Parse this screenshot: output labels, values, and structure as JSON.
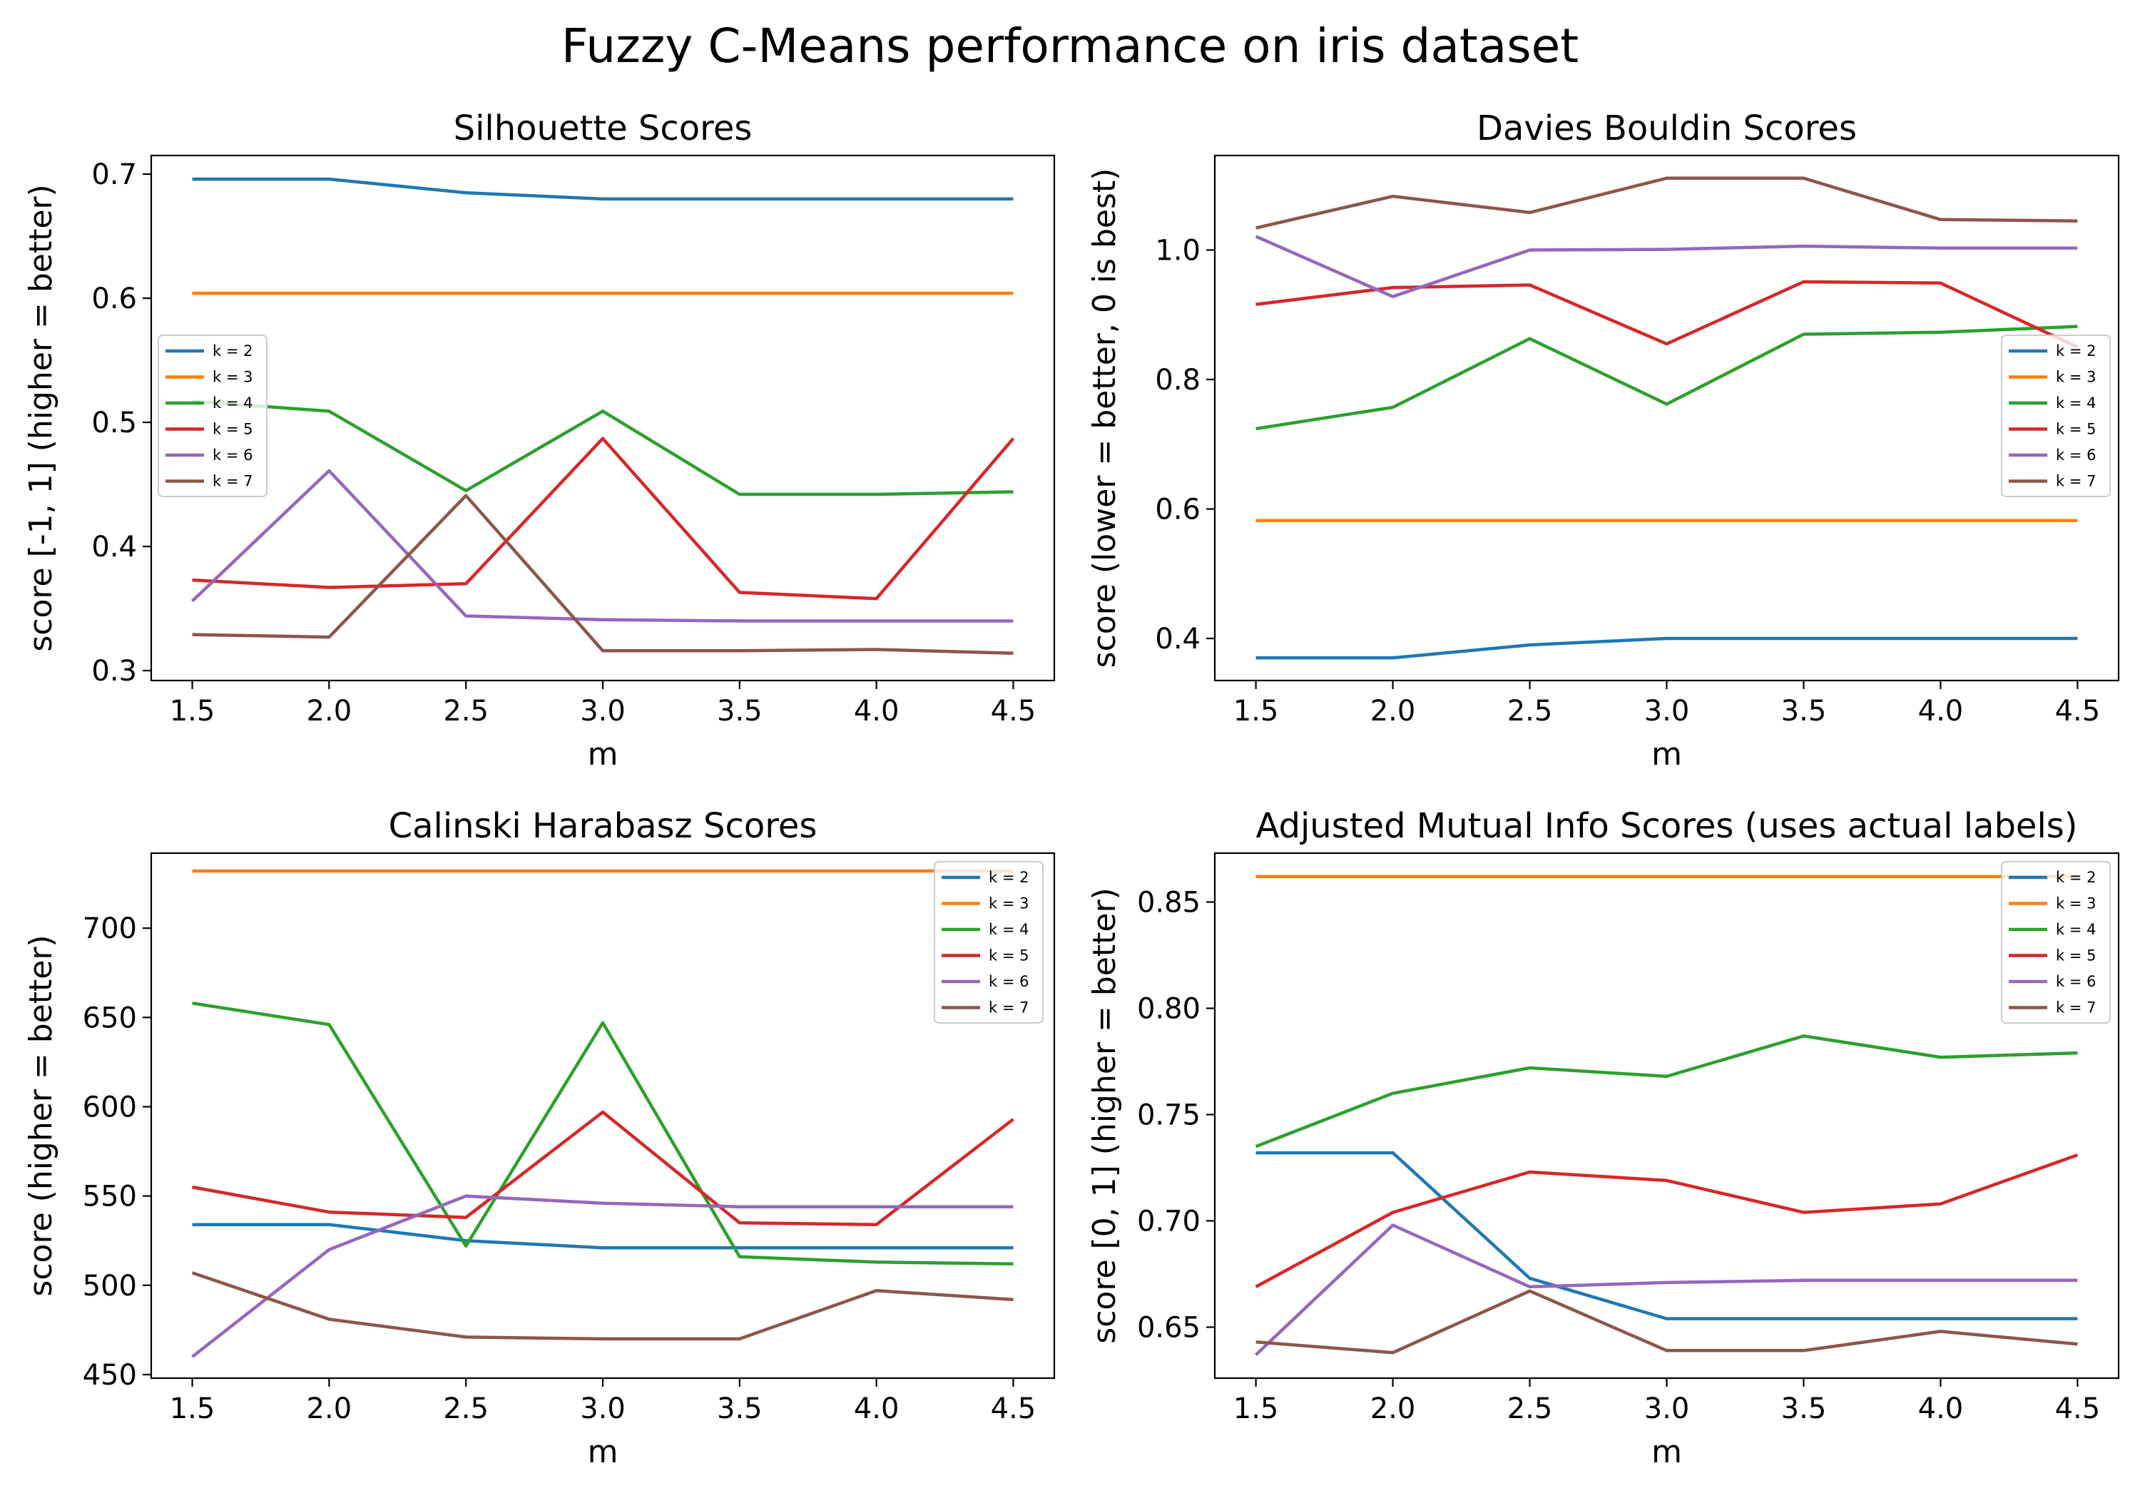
{
  "figure_title": "Fuzzy C-Means performance on iris dataset",
  "chart_data": [
    {
      "type": "line",
      "title": "Silhouette Scores",
      "xlabel": "m",
      "ylabel": "score [-1, 1] (higher = better)",
      "x": [
        1.5,
        2.0,
        2.5,
        3.0,
        3.5,
        4.0,
        4.5
      ],
      "xticks": [
        "1.5",
        "2.0",
        "2.5",
        "3.0",
        "3.5",
        "4.0",
        "4.5"
      ],
      "yticks": [
        "0.3",
        "0.4",
        "0.5",
        "0.6",
        "0.7"
      ],
      "legend_position": "center-left",
      "series": [
        {
          "name": "k = 2",
          "color": "#1f77b4",
          "values": [
            0.696,
            0.696,
            0.685,
            0.68,
            0.68,
            0.68,
            0.68
          ]
        },
        {
          "name": "k = 3",
          "color": "#ff7f0e",
          "values": [
            0.604,
            0.604,
            0.604,
            0.604,
            0.604,
            0.604,
            0.604
          ]
        },
        {
          "name": "k = 4",
          "color": "#2ca02c",
          "values": [
            0.517,
            0.509,
            0.445,
            0.509,
            0.442,
            0.442,
            0.444
          ]
        },
        {
          "name": "k = 5",
          "color": "#d62728",
          "values": [
            0.373,
            0.367,
            0.37,
            0.487,
            0.363,
            0.358,
            0.487
          ]
        },
        {
          "name": "k = 6",
          "color": "#9467bd",
          "values": [
            0.356,
            0.461,
            0.344,
            0.341,
            0.34,
            0.34,
            0.34
          ]
        },
        {
          "name": "k = 7",
          "color": "#8c564b",
          "values": [
            0.329,
            0.327,
            0.441,
            0.316,
            0.316,
            0.317,
            0.314
          ]
        }
      ]
    },
    {
      "type": "line",
      "title": "Davies Bouldin Scores",
      "xlabel": "m",
      "ylabel": "score (lower = better, 0 is best)",
      "x": [
        1.5,
        2.0,
        2.5,
        3.0,
        3.5,
        4.0,
        4.5
      ],
      "xticks": [
        "1.5",
        "2.0",
        "2.5",
        "3.0",
        "3.5",
        "4.0",
        "4.5"
      ],
      "yticks": [
        "0.4",
        "0.6",
        "0.8",
        "1.0"
      ],
      "legend_position": "center-right",
      "series": [
        {
          "name": "k = 2",
          "color": "#1f77b4",
          "values": [
            0.37,
            0.37,
            0.39,
            0.4,
            0.4,
            0.4,
            0.4
          ]
        },
        {
          "name": "k = 3",
          "color": "#ff7f0e",
          "values": [
            0.582,
            0.582,
            0.582,
            0.582,
            0.582,
            0.582,
            0.582
          ]
        },
        {
          "name": "k = 4",
          "color": "#2ca02c",
          "values": [
            0.724,
            0.757,
            0.863,
            0.762,
            0.87,
            0.873,
            0.882
          ]
        },
        {
          "name": "k = 5",
          "color": "#d62728",
          "values": [
            0.916,
            0.942,
            0.946,
            0.855,
            0.951,
            0.949,
            0.85
          ]
        },
        {
          "name": "k = 6",
          "color": "#9467bd",
          "values": [
            1.021,
            0.928,
            1.0,
            1.001,
            1.006,
            1.003,
            1.003
          ]
        },
        {
          "name": "k = 7",
          "color": "#8c564b",
          "values": [
            1.034,
            1.083,
            1.058,
            1.111,
            1.111,
            1.047,
            1.045
          ]
        }
      ]
    },
    {
      "type": "line",
      "title": "Calinski Harabasz Scores",
      "xlabel": "m",
      "ylabel": "score (higher = better)",
      "x": [
        1.5,
        2.0,
        2.5,
        3.0,
        3.5,
        4.0,
        4.5
      ],
      "xticks": [
        "1.5",
        "2.0",
        "2.5",
        "3.0",
        "3.5",
        "4.0",
        "4.5"
      ],
      "yticks": [
        "450",
        "500",
        "550",
        "600",
        "650",
        "700"
      ],
      "legend_position": "upper-right",
      "series": [
        {
          "name": "k = 2",
          "color": "#1f77b4",
          "values": [
            534,
            534,
            525,
            521,
            521,
            521,
            521
          ]
        },
        {
          "name": "k = 3",
          "color": "#ff7f0e",
          "values": [
            732,
            732,
            732,
            732,
            732,
            732,
            732
          ]
        },
        {
          "name": "k = 4",
          "color": "#2ca02c",
          "values": [
            658,
            646,
            522,
            647,
            516,
            513,
            512
          ]
        },
        {
          "name": "k = 5",
          "color": "#d62728",
          "values": [
            555,
            541,
            538,
            597,
            535,
            534,
            593
          ]
        },
        {
          "name": "k = 6",
          "color": "#9467bd",
          "values": [
            460,
            520,
            550,
            546,
            544,
            544,
            544
          ]
        },
        {
          "name": "k = 7",
          "color": "#8c564b",
          "values": [
            507,
            481,
            471,
            470,
            470,
            497,
            492
          ]
        }
      ]
    },
    {
      "type": "line",
      "title": "Adjusted Mutual Info Scores (uses actual labels)",
      "xlabel": "m",
      "ylabel": "score [0, 1] (higher = better)",
      "x": [
        1.5,
        2.0,
        2.5,
        3.0,
        3.5,
        4.0,
        4.5
      ],
      "xticks": [
        "1.5",
        "2.0",
        "2.5",
        "3.0",
        "3.5",
        "4.0",
        "4.5"
      ],
      "yticks": [
        "0.65",
        "0.70",
        "0.75",
        "0.80",
        "0.85"
      ],
      "legend_position": "upper-right",
      "series": [
        {
          "name": "k = 2",
          "color": "#1f77b4",
          "values": [
            0.732,
            0.732,
            0.673,
            0.654,
            0.654,
            0.654,
            0.654
          ]
        },
        {
          "name": "k = 3",
          "color": "#ff7f0e",
          "values": [
            0.862,
            0.862,
            0.862,
            0.862,
            0.862,
            0.862,
            0.862
          ]
        },
        {
          "name": "k = 4",
          "color": "#2ca02c",
          "values": [
            0.735,
            0.76,
            0.772,
            0.768,
            0.787,
            0.777,
            0.779
          ]
        },
        {
          "name": "k = 5",
          "color": "#d62728",
          "values": [
            0.669,
            0.704,
            0.723,
            0.719,
            0.704,
            0.708,
            0.731
          ]
        },
        {
          "name": "k = 6",
          "color": "#9467bd",
          "values": [
            0.637,
            0.698,
            0.669,
            0.671,
            0.672,
            0.672,
            0.672
          ]
        },
        {
          "name": "k = 7",
          "color": "#8c564b",
          "values": [
            0.643,
            0.638,
            0.667,
            0.639,
            0.639,
            0.648,
            0.642
          ]
        }
      ]
    }
  ]
}
